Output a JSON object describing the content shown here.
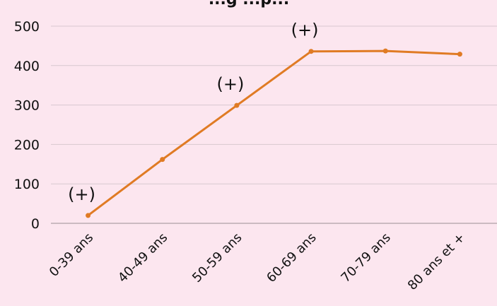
{
  "chart_data": {
    "type": "line",
    "title": "...g ...p...",
    "xlabel": "",
    "ylabel": "",
    "ylim": [
      0,
      500
    ],
    "yticks": [
      0,
      100,
      200,
      300,
      400,
      500
    ],
    "grid": true,
    "categories": [
      "0-39 ans",
      "40-49 ans",
      "50-59 ans",
      "60-69 ans",
      "70-79 ans",
      "80 ans et +"
    ],
    "series": [
      {
        "values": [
          20,
          162,
          299,
          436,
          437,
          429
        ],
        "color": "#e07b24"
      }
    ],
    "annotations": [
      {
        "category": "0-39 ans",
        "text": "(+)"
      },
      {
        "category": "50-59 ans",
        "text": "(+)"
      },
      {
        "category": "60-69 ans",
        "text": "(+)"
      }
    ]
  }
}
